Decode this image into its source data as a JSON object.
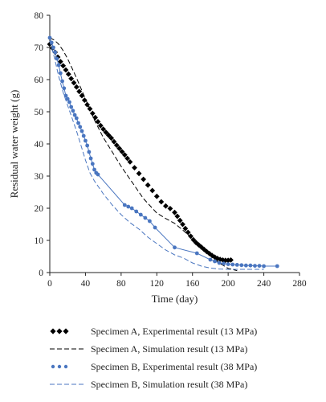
{
  "chart_data": {
    "type": "line",
    "xlabel": "Time (day)",
    "ylabel": "Residual water weight (g)",
    "xlim": [
      0,
      280
    ],
    "ylim": [
      0,
      80
    ],
    "xticks": [
      0,
      40,
      80,
      120,
      160,
      200,
      240,
      280
    ],
    "yticks": [
      0,
      10,
      20,
      30,
      40,
      50,
      60,
      70,
      80
    ],
    "grid": false,
    "legend_position": "below",
    "series": [
      {
        "name": "Specimen A, Experimental result (13 MPa)",
        "style": "diamond-markers",
        "color": "#000000",
        "x": [
          0,
          3,
          6,
          9,
          12,
          15,
          18,
          21,
          24,
          27,
          30,
          33,
          36,
          39,
          42,
          45,
          48,
          51,
          54,
          57,
          60,
          63,
          66,
          69,
          72,
          75,
          78,
          81,
          84,
          87,
          90,
          95,
          100,
          105,
          110,
          115,
          120,
          125,
          130,
          135,
          140,
          143,
          146,
          149,
          152,
          155,
          158,
          161,
          164,
          167,
          170,
          173,
          176,
          179,
          182,
          185,
          188,
          191,
          194,
          197,
          200,
          203
        ],
        "y": [
          71,
          69.8,
          68.5,
          67,
          65.6,
          64.3,
          63,
          61.7,
          60.3,
          59,
          57.7,
          56.3,
          55,
          53.6,
          52.2,
          50.9,
          49.5,
          48.2,
          46.9,
          45.7,
          44.6,
          43.6,
          42.7,
          41.8,
          40.7,
          39.6,
          38.6,
          37.6,
          36.6,
          35.5,
          34.4,
          32.6,
          30.8,
          29,
          27.2,
          25.5,
          23.7,
          22,
          20.7,
          19.9,
          18.7,
          17.5,
          16.2,
          15,
          13.7,
          12.5,
          11.3,
          10.2,
          9.3,
          8.6,
          7.9,
          7.2,
          6.5,
          5.9,
          5.3,
          4.8,
          4.4,
          4.1,
          3.9,
          3.8,
          3.8,
          3.9
        ]
      },
      {
        "name": "Specimen A, Simulation result (13 MPa)",
        "style": "dashed",
        "color": "#000000",
        "x": [
          0,
          5,
          10,
          15,
          20,
          25,
          30,
          40,
          50,
          60,
          70,
          80,
          90,
          100,
          105,
          110,
          120,
          130,
          140,
          150,
          160,
          170,
          180,
          190,
          200,
          210
        ],
        "y": [
          73,
          72.3,
          71,
          69,
          66.5,
          63.5,
          60.5,
          54,
          47.5,
          42,
          37.5,
          33,
          29,
          25,
          23,
          21.5,
          18.5,
          16.8,
          15.3,
          13,
          10.5,
          8,
          5.3,
          3,
          1.3,
          0.6
        ]
      },
      {
        "name": "Specimen B, Experimental result (38 MPa)",
        "style": "circle-markers-line",
        "color": "#4a76c0",
        "x": [
          0,
          2,
          4,
          6,
          8,
          10,
          12,
          14,
          16,
          18,
          20,
          22,
          24,
          26,
          28,
          30,
          32,
          34,
          36,
          38,
          40,
          42,
          44,
          46,
          48,
          50,
          52,
          54,
          84,
          88,
          92,
          97,
          102,
          107,
          112,
          118,
          140,
          165,
          180,
          185,
          190,
          195,
          200,
          205,
          210,
          215,
          220,
          225,
          230,
          235,
          240,
          255
        ],
        "y": [
          73,
          71.5,
          70,
          68.5,
          66.5,
          64.5,
          62,
          59.5,
          57.3,
          55,
          54,
          53,
          51.5,
          50.3,
          49,
          48,
          46.5,
          45.3,
          44,
          42.5,
          41,
          39.5,
          37.5,
          35.5,
          33.8,
          32,
          31,
          30.5,
          21,
          20.5,
          20,
          19,
          18,
          17,
          16,
          14,
          7.8,
          6,
          4,
          3.5,
          3,
          2.8,
          2.6,
          2.5,
          2.4,
          2.3,
          2.2,
          2.2,
          2.1,
          2.1,
          2,
          2
        ]
      },
      {
        "name": "Specimen B, Simulation result (38 MPa)",
        "style": "dashed",
        "color": "#4a76c0",
        "x": [
          0,
          5,
          10,
          15,
          20,
          25,
          30,
          35,
          40,
          45,
          50,
          55,
          60,
          70,
          80,
          90,
          100,
          110,
          120,
          130,
          140,
          150,
          160,
          170,
          180,
          190,
          200,
          210,
          220,
          240
        ],
        "y": [
          72,
          67,
          61,
          56,
          52,
          48,
          44,
          39.5,
          35,
          31,
          28.5,
          26.5,
          24.5,
          21,
          18,
          15.5,
          13.5,
          11,
          9,
          7,
          5.5,
          4.5,
          3,
          2,
          1.4,
          1.1,
          1,
          1,
          1,
          1
        ]
      }
    ]
  }
}
